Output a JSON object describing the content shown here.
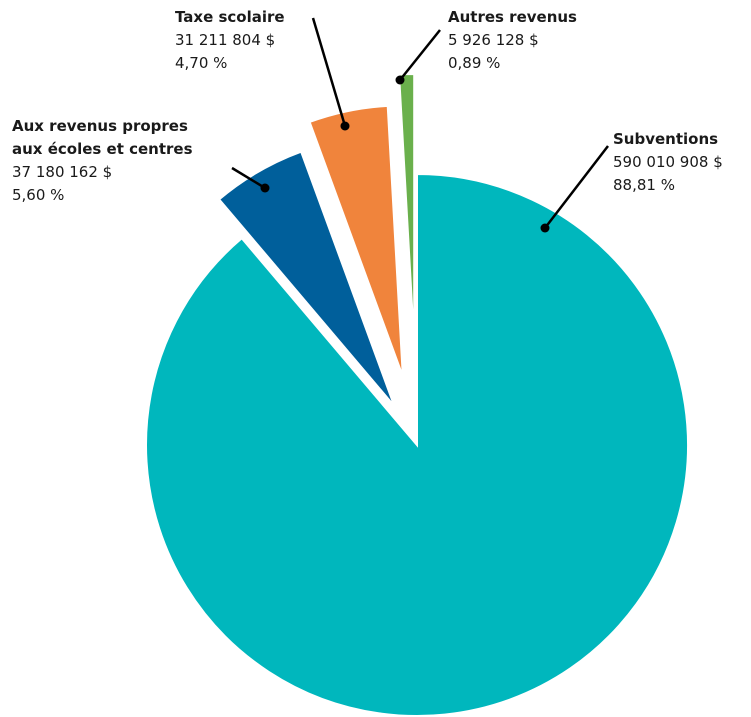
{
  "chart_data": {
    "type": "pie",
    "categories": [
      "Subventions",
      "Aux revenus propres\naux écoles et centres",
      "Taxe scolaire",
      "Autres revenus"
    ],
    "values": [
      88.81,
      5.6,
      4.7,
      0.89
    ],
    "value_labels": [
      "88,81 %",
      "5,60 %",
      "4,70 %",
      "0,89 %"
    ],
    "amounts": [
      590010908,
      37180162,
      31211804,
      5926128
    ],
    "amount_labels": [
      "590 010 908 $",
      "37 180 162 $",
      "31 211 804 $",
      "5 926 128 $"
    ],
    "colors": [
      "#00b7bd",
      "#005f9b",
      "#f0843c",
      "#6ab04c"
    ]
  }
}
